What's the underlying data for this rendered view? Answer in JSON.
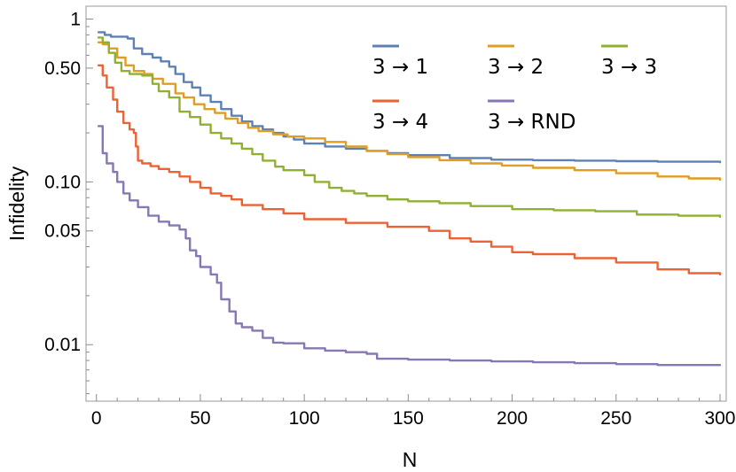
{
  "chart_data": {
    "type": "line",
    "title": "",
    "xlabel": "N",
    "ylabel": "Infidelity",
    "xlim": [
      -5,
      303
    ],
    "ylim": [
      0.0045,
      1.2
    ],
    "yscale": "log",
    "grid": false,
    "legend_position": "top-right",
    "x_ticks": [
      0,
      50,
      100,
      150,
      200,
      250,
      300
    ],
    "x_tick_labels": [
      "0",
      "50",
      "100",
      "150",
      "200",
      "250",
      "300"
    ],
    "y_ticks": [
      0.01,
      0.05,
      0.1,
      0.5,
      1
    ],
    "y_tick_labels": [
      "0.01",
      "0.05",
      "0.10",
      "0.50",
      "1"
    ],
    "series": [
      {
        "name": "3 → 1",
        "color": "#5e81b5",
        "points": [
          [
            1,
            0.83
          ],
          [
            4,
            0.8
          ],
          [
            7,
            0.78
          ],
          [
            15,
            0.76
          ],
          [
            18,
            0.66
          ],
          [
            22,
            0.61
          ],
          [
            27,
            0.58
          ],
          [
            31,
            0.55
          ],
          [
            35,
            0.51
          ],
          [
            38,
            0.46
          ],
          [
            42,
            0.41
          ],
          [
            46,
            0.38
          ],
          [
            50,
            0.34
          ],
          [
            55,
            0.31
          ],
          [
            60,
            0.28
          ],
          [
            65,
            0.255
          ],
          [
            70,
            0.235
          ],
          [
            75,
            0.22
          ],
          [
            80,
            0.21
          ],
          [
            85,
            0.2
          ],
          [
            90,
            0.19
          ],
          [
            95,
            0.182
          ],
          [
            100,
            0.172
          ],
          [
            110,
            0.165
          ],
          [
            120,
            0.16
          ],
          [
            130,
            0.155
          ],
          [
            140,
            0.15
          ],
          [
            150,
            0.146
          ],
          [
            170,
            0.14
          ],
          [
            190,
            0.137
          ],
          [
            210,
            0.136
          ],
          [
            230,
            0.135
          ],
          [
            250,
            0.134
          ],
          [
            270,
            0.133
          ],
          [
            300,
            0.132
          ]
        ]
      },
      {
        "name": "3 → 2",
        "color": "#e19c24",
        "points": [
          [
            1,
            0.72
          ],
          [
            3,
            0.7
          ],
          [
            6,
            0.66
          ],
          [
            10,
            0.58
          ],
          [
            14,
            0.52
          ],
          [
            18,
            0.48
          ],
          [
            23,
            0.46
          ],
          [
            27,
            0.43
          ],
          [
            32,
            0.4
          ],
          [
            38,
            0.35
          ],
          [
            42,
            0.33
          ],
          [
            47,
            0.3
          ],
          [
            52,
            0.28
          ],
          [
            57,
            0.265
          ],
          [
            62,
            0.245
          ],
          [
            68,
            0.23
          ],
          [
            73,
            0.215
          ],
          [
            78,
            0.205
          ],
          [
            85,
            0.196
          ],
          [
            92,
            0.19
          ],
          [
            100,
            0.185
          ],
          [
            110,
            0.176
          ],
          [
            120,
            0.165
          ],
          [
            130,
            0.155
          ],
          [
            140,
            0.148
          ],
          [
            150,
            0.142
          ],
          [
            165,
            0.136
          ],
          [
            180,
            0.13
          ],
          [
            195,
            0.126
          ],
          [
            210,
            0.122
          ],
          [
            230,
            0.118
          ],
          [
            250,
            0.113
          ],
          [
            270,
            0.108
          ],
          [
            285,
            0.105
          ],
          [
            300,
            0.103
          ]
        ]
      },
      {
        "name": "3 → 3",
        "color": "#8fb032",
        "points": [
          [
            1,
            0.77
          ],
          [
            3,
            0.72
          ],
          [
            6,
            0.62
          ],
          [
            9,
            0.54
          ],
          [
            12,
            0.48
          ],
          [
            16,
            0.46
          ],
          [
            22,
            0.45
          ],
          [
            27,
            0.4
          ],
          [
            30,
            0.36
          ],
          [
            35,
            0.33
          ],
          [
            40,
            0.27
          ],
          [
            45,
            0.25
          ],
          [
            50,
            0.225
          ],
          [
            55,
            0.2
          ],
          [
            60,
            0.185
          ],
          [
            65,
            0.172
          ],
          [
            70,
            0.16
          ],
          [
            75,
            0.148
          ],
          [
            80,
            0.135
          ],
          [
            86,
            0.124
          ],
          [
            90,
            0.118
          ],
          [
            100,
            0.11
          ],
          [
            105,
            0.1
          ],
          [
            112,
            0.092
          ],
          [
            118,
            0.088
          ],
          [
            124,
            0.085
          ],
          [
            130,
            0.082
          ],
          [
            140,
            0.078
          ],
          [
            150,
            0.076
          ],
          [
            165,
            0.074
          ],
          [
            180,
            0.071
          ],
          [
            200,
            0.068
          ],
          [
            220,
            0.067
          ],
          [
            240,
            0.066
          ],
          [
            260,
            0.063
          ],
          [
            280,
            0.062
          ],
          [
            300,
            0.061
          ]
        ]
      },
      {
        "name": "3 → 4",
        "color": "#eb6235",
        "points": [
          [
            1,
            0.52
          ],
          [
            3,
            0.45
          ],
          [
            5,
            0.38
          ],
          [
            8,
            0.32
          ],
          [
            10,
            0.27
          ],
          [
            13,
            0.23
          ],
          [
            16,
            0.21
          ],
          [
            18,
            0.2
          ],
          [
            19,
            0.165
          ],
          [
            20,
            0.135
          ],
          [
            22,
            0.13
          ],
          [
            26,
            0.125
          ],
          [
            30,
            0.12
          ],
          [
            35,
            0.115
          ],
          [
            40,
            0.108
          ],
          [
            45,
            0.1
          ],
          [
            50,
            0.092
          ],
          [
            55,
            0.085
          ],
          [
            60,
            0.082
          ],
          [
            65,
            0.078
          ],
          [
            70,
            0.072
          ],
          [
            80,
            0.068
          ],
          [
            90,
            0.064
          ],
          [
            100,
            0.059
          ],
          [
            120,
            0.056
          ],
          [
            140,
            0.053
          ],
          [
            160,
            0.05
          ],
          [
            170,
            0.045
          ],
          [
            180,
            0.043
          ],
          [
            190,
            0.04
          ],
          [
            200,
            0.037
          ],
          [
            210,
            0.036
          ],
          [
            230,
            0.034
          ],
          [
            250,
            0.032
          ],
          [
            270,
            0.029
          ],
          [
            285,
            0.0275
          ],
          [
            300,
            0.027
          ]
        ]
      },
      {
        "name": "3 → RND",
        "color": "#8778b3",
        "points": [
          [
            1,
            0.22
          ],
          [
            3,
            0.15
          ],
          [
            5,
            0.13
          ],
          [
            8,
            0.115
          ],
          [
            10,
            0.1
          ],
          [
            13,
            0.085
          ],
          [
            16,
            0.077
          ],
          [
            20,
            0.07
          ],
          [
            25,
            0.062
          ],
          [
            30,
            0.057
          ],
          [
            35,
            0.054
          ],
          [
            40,
            0.051
          ],
          [
            43,
            0.045
          ],
          [
            45,
            0.038
          ],
          [
            48,
            0.035
          ],
          [
            50,
            0.03
          ],
          [
            55,
            0.027
          ],
          [
            58,
            0.024
          ],
          [
            60,
            0.019
          ],
          [
            64,
            0.016
          ],
          [
            67,
            0.0135
          ],
          [
            70,
            0.0128
          ],
          [
            75,
            0.0122
          ],
          [
            80,
            0.011
          ],
          [
            85,
            0.0103
          ],
          [
            90,
            0.0102
          ],
          [
            100,
            0.0095
          ],
          [
            110,
            0.0092
          ],
          [
            120,
            0.009
          ],
          [
            130,
            0.0088
          ],
          [
            135,
            0.0082
          ],
          [
            150,
            0.0081
          ],
          [
            170,
            0.008
          ],
          [
            190,
            0.0079
          ],
          [
            210,
            0.0078
          ],
          [
            230,
            0.0077
          ],
          [
            250,
            0.0076
          ],
          [
            270,
            0.0075
          ],
          [
            300,
            0.0075
          ]
        ]
      }
    ]
  }
}
